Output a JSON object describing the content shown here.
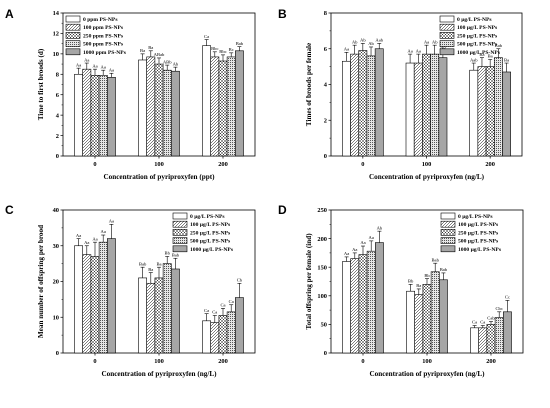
{
  "figure": {
    "background": "#ffffff"
  },
  "chart_data": [
    {
      "panel_label": "A",
      "type": "bar",
      "xlabel": "Concentration of pyriproxyfen (ppt)",
      "ylabel": "Time to first broods (d)",
      "categories": [
        "0",
        "100",
        "200"
      ],
      "ylim": [
        0,
        14
      ],
      "yticks": [
        0,
        2,
        4,
        6,
        8,
        10,
        12,
        14
      ],
      "legend": "top-left",
      "series": [
        {
          "name": "0 ppm PS-NPs",
          "fill": "white",
          "values": [
            8.0,
            9.4,
            10.8
          ],
          "errors": [
            0.6,
            0.6,
            0.6
          ],
          "letters": [
            "Aa",
            "Ba",
            "Ca"
          ]
        },
        {
          "name": "100 ppm PS-NPs",
          "fill": "diag",
          "values": [
            8.5,
            9.7,
            9.7
          ],
          "errors": [
            0.6,
            0.6,
            0.5
          ],
          "letters": [
            "Aa",
            "Ba",
            "Bbc"
          ]
        },
        {
          "name": "250 ppm PS-NPs",
          "fill": "cross",
          "values": [
            7.9,
            9.0,
            9.3
          ],
          "errors": [
            0.6,
            0.6,
            0.6
          ],
          "letters": [
            "Aa",
            "ABab",
            "Bbc"
          ]
        },
        {
          "name": "500 ppm PS-NPs",
          "fill": "dots",
          "values": [
            7.9,
            8.4,
            9.7
          ],
          "errors": [
            0.5,
            0.5,
            0.4
          ],
          "letters": [
            "Aa",
            "ABb",
            "Bc"
          ]
        },
        {
          "name": "1000 ppm PS-NPs",
          "fill": "gray",
          "values": [
            7.7,
            8.3,
            10.3
          ],
          "errors": [
            0.4,
            0.4,
            0.4
          ],
          "letters": [
            "Aa",
            "Ab",
            "Bab"
          ]
        }
      ]
    },
    {
      "panel_label": "B",
      "type": "bar",
      "xlabel": "Concentration of pyriproxyfen (ng/L)",
      "ylabel": "Times of broods per female",
      "categories": [
        "0",
        "100",
        "200"
      ],
      "ylim": [
        0,
        8
      ],
      "yticks": [
        0,
        2,
        4,
        6,
        8
      ],
      "legend": "top-right",
      "series": [
        {
          "name": "0 µg/L PS-NPs",
          "fill": "white",
          "values": [
            5.3,
            5.2,
            4.8
          ],
          "errors": [
            0.5,
            0.5,
            0.4
          ],
          "letters": [
            "Aa",
            "Aa",
            "Aab"
          ]
        },
        {
          "name": "100 µg/L PS-NPs",
          "fill": "diag",
          "values": [
            5.7,
            5.2,
            5.0
          ],
          "errors": [
            0.5,
            0.5,
            0.5
          ],
          "letters": [
            "Ab",
            "Aa",
            "Ba"
          ]
        },
        {
          "name": "250 µg/L PS-NPs",
          "fill": "cross",
          "values": [
            5.9,
            5.7,
            5.0
          ],
          "errors": [
            0.4,
            0.5,
            0.4
          ],
          "letters": [
            "Ab",
            "Aa",
            "Ba"
          ]
        },
        {
          "name": "500 µg/L PS-NPs",
          "fill": "dots",
          "values": [
            5.6,
            5.7,
            5.5
          ],
          "errors": [
            0.5,
            0.5,
            0.5
          ],
          "letters": [
            "Ab",
            "Ab",
            "Bab"
          ]
        },
        {
          "name": "1000 µg/L PS-NPs",
          "fill": "gray",
          "values": [
            6.0,
            5.5,
            4.7
          ],
          "errors": [
            0.3,
            0.4,
            0.5
          ],
          "letters": [
            "Aab",
            "Ab",
            "Ba"
          ]
        }
      ]
    },
    {
      "panel_label": "C",
      "type": "bar",
      "xlabel": "Concentration of pyriproxyfen (ng/L)",
      "ylabel": "Mean number of offspring per brood",
      "categories": [
        "0",
        "100",
        "200"
      ],
      "ylim": [
        0,
        40
      ],
      "yticks": [
        0,
        10,
        20,
        30,
        40
      ],
      "legend": "top-right",
      "series": [
        {
          "name": "0 µg/L PS-NPs",
          "fill": "white",
          "values": [
            30,
            21,
            9
          ],
          "errors": [
            2,
            3,
            2
          ],
          "letters": [
            "Aa",
            "Bab",
            "Ca"
          ]
        },
        {
          "name": "100 µg/L PS-NPs",
          "fill": "diag",
          "values": [
            27.5,
            19.5,
            8.5
          ],
          "errors": [
            2.5,
            3,
            2
          ],
          "letters": [
            "Aa",
            "Ba",
            "Ca"
          ]
        },
        {
          "name": "250 µg/L PS-NPs",
          "fill": "cross",
          "values": [
            27,
            21,
            10.5
          ],
          "errors": [
            4,
            3,
            2
          ],
          "letters": [
            "Aa",
            "Ba",
            "Ca"
          ]
        },
        {
          "name": "500 µg/L PS-NPs",
          "fill": "dots",
          "values": [
            31,
            25,
            11.5
          ],
          "errors": [
            2,
            2,
            2
          ],
          "letters": [
            "Aa",
            "Bb",
            "Ca"
          ]
        },
        {
          "name": "1000 µg/L PS-NPs",
          "fill": "gray",
          "values": [
            32,
            23.5,
            15.5
          ],
          "errors": [
            4,
            3,
            4
          ],
          "letters": [
            "Aa",
            "Bab",
            "Cb"
          ]
        }
      ]
    },
    {
      "panel_label": "D",
      "type": "bar",
      "xlabel": "Concentration of pyriproxyfen (ng/L)",
      "ylabel": "Total offspring per female (ind)",
      "categories": [
        "0",
        "100",
        "200"
      ],
      "ylim": [
        0,
        250
      ],
      "yticks": [
        0,
        50,
        100,
        150,
        200,
        250
      ],
      "legend": "top-right",
      "series": [
        {
          "name": "0 µg/L PS-NPs",
          "fill": "white",
          "values": [
            160,
            108,
            44
          ],
          "errors": [
            8,
            12,
            4
          ],
          "letters": [
            "Aa",
            "Bb",
            "Ca"
          ]
        },
        {
          "name": "100 µg/L PS-NPs",
          "fill": "diag",
          "values": [
            165,
            102,
            44
          ],
          "errors": [
            10,
            10,
            4
          ],
          "letters": [
            "Aa",
            "Ba",
            "Ca"
          ]
        },
        {
          "name": "250 µg/L PS-NPs",
          "fill": "cross",
          "values": [
            172,
            120,
            50
          ],
          "errors": [
            15,
            10,
            5
          ],
          "letters": [
            "Aa",
            "Bb",
            "Cab"
          ]
        },
        {
          "name": "500 µg/L PS-NPs",
          "fill": "dots",
          "values": [
            178,
            142,
            62
          ],
          "errors": [
            18,
            15,
            10
          ],
          "letters": [
            "Aa",
            "Bab",
            "Cbc"
          ]
        },
        {
          "name": "1000 µg/L PS-NPs",
          "fill": "gray",
          "values": [
            193,
            128,
            72
          ],
          "errors": [
            20,
            12,
            20
          ],
          "letters": [
            "Ab",
            "Bab",
            "Cc"
          ]
        }
      ]
    }
  ]
}
